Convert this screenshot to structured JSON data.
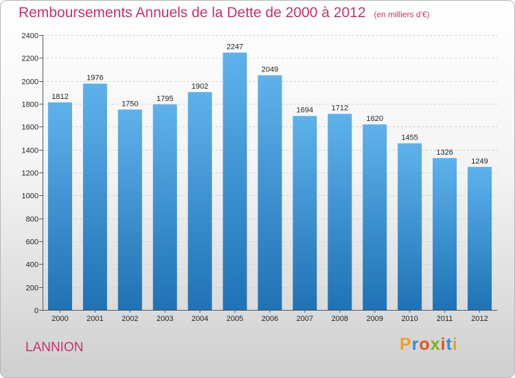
{
  "header": {
    "title": "Remboursements Annuels de la Dette de 2000 à 2012",
    "unit": "(en milliers d'€)"
  },
  "footer": {
    "place": "LANNION",
    "brand": [
      "P",
      "r",
      "o",
      "x",
      "i",
      "t",
      "i"
    ],
    "brand_colors": [
      "#f0a020",
      "#2f8fd8",
      "#e8501e",
      "#7ab51d",
      "#e8501e",
      "#2f8fd8",
      "#e8a020"
    ]
  },
  "colors": {
    "title": "#c8306e",
    "bar_top": "#5eb2ec",
    "bar_bottom": "#1f72b4"
  },
  "chart_data": {
    "type": "bar",
    "title": "Remboursements Annuels de la Dette de 2000 à 2012",
    "xlabel": "",
    "ylabel": "",
    "categories": [
      "2000",
      "2001",
      "2002",
      "2003",
      "2004",
      "2005",
      "2006",
      "2007",
      "2008",
      "2009",
      "2010",
      "2011",
      "2012"
    ],
    "values": [
      1812,
      1976,
      1750,
      1795,
      1902,
      2247,
      2049,
      1694,
      1712,
      1620,
      1455,
      1326,
      1249
    ],
    "ylim": [
      0,
      2400
    ],
    "yticks": [
      0,
      200,
      400,
      600,
      800,
      1000,
      1200,
      1400,
      1600,
      1800,
      2000,
      2200,
      2400
    ],
    "grid": true,
    "legend": "none"
  }
}
